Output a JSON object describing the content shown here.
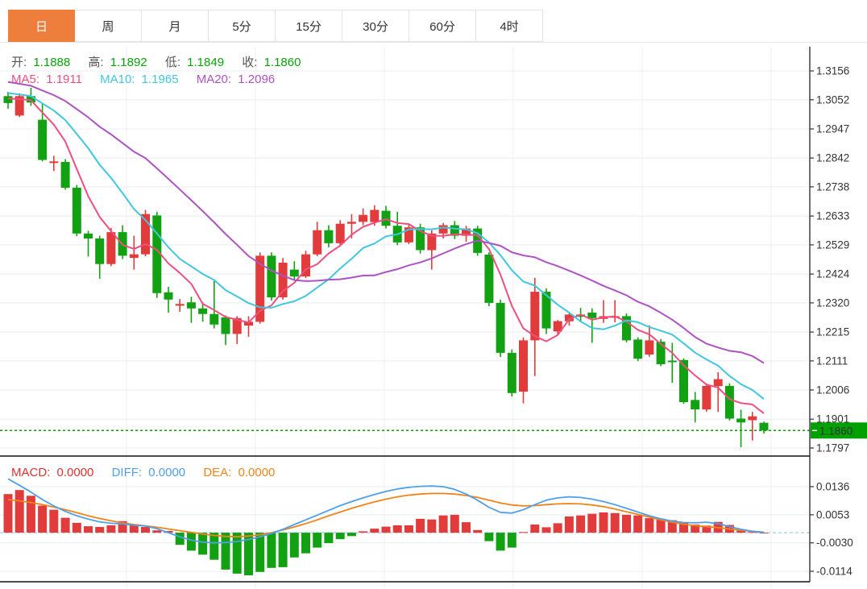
{
  "tabs": [
    {
      "label": "日",
      "active": true
    },
    {
      "label": "周",
      "active": false
    },
    {
      "label": "月",
      "active": false
    },
    {
      "label": "5分",
      "active": false
    },
    {
      "label": "15分",
      "active": false
    },
    {
      "label": "30分",
      "active": false
    },
    {
      "label": "60分",
      "active": false
    },
    {
      "label": "4时",
      "active": false
    }
  ],
  "legend_ohlc": {
    "open_label": "开:",
    "open": "1.1888",
    "high_label": "高:",
    "high": "1.1892",
    "low_label": "低:",
    "low": "1.1849",
    "close_label": "收:",
    "close": "1.1860"
  },
  "legend_ma": {
    "ma5_label": "MA5:",
    "ma5": "1.1911",
    "ma10_label": "MA10:",
    "ma10": "1.1965",
    "ma20_label": "MA20:",
    "ma20": "1.2096"
  },
  "legend_macd": {
    "macd_label": "MACD:",
    "macd": "0.0000",
    "diff_label": "DIFF:",
    "diff": "0.0000",
    "dea_label": "DEA:",
    "dea": "0.0000"
  },
  "colors": {
    "up": "#e23b3b",
    "down": "#12a112",
    "value_text": "#0aa30a",
    "ma5": "#ee4f80",
    "ma10": "#3fc7de",
    "ma20": "#ad53c2",
    "diff": "#4f9fea",
    "dea": "#f08418",
    "macd_text": "#e03030",
    "tab_active": "#ee7e3c",
    "price_tag": "#00a000",
    "grid": "#e7eef6",
    "vgrid": "#ececec",
    "zero_dash": "#aed6f1",
    "frame": "#111111"
  },
  "chart_data": {
    "type": "candlestick+macd",
    "note": "Daily FX candles; values estimated from axis gridlines",
    "main": {
      "y_ticks": [
        "1.3156",
        "1.3052",
        "1.2947",
        "1.2842",
        "1.2738",
        "1.2633",
        "1.2529",
        "1.2424",
        "1.2320",
        "1.2215",
        "1.2111",
        "1.2006",
        "1.1901",
        "1.1797"
      ],
      "current_price": "1.1860",
      "ma_periods": [
        5,
        10,
        20
      ],
      "candles": [
        [
          1.3065,
          1.308,
          1.302,
          1.304
        ],
        [
          1.2995,
          1.3075,
          1.299,
          1.3065
        ],
        [
          1.3065,
          1.3095,
          1.303,
          1.3042
        ],
        [
          1.298,
          1.304,
          1.283,
          1.2835
        ],
        [
          1.2825,
          1.285,
          1.2795,
          1.283
        ],
        [
          1.2828,
          1.2838,
          1.2728,
          1.2735
        ],
        [
          1.2735,
          1.2745,
          1.256,
          1.257
        ],
        [
          1.257,
          1.258,
          1.2487,
          1.2552
        ],
        [
          1.2552,
          1.2562,
          1.2407,
          1.246
        ],
        [
          1.246,
          1.259,
          1.2452,
          1.2575
        ],
        [
          1.2575,
          1.26,
          1.2478,
          1.249
        ],
        [
          1.2482,
          1.2562,
          1.244,
          1.2495
        ],
        [
          1.2495,
          1.2655,
          1.2488,
          1.264
        ],
        [
          1.2635,
          1.2648,
          1.2338,
          1.2355
        ],
        [
          1.2358,
          1.2378,
          1.2285,
          1.2332
        ],
        [
          1.231,
          1.2334,
          1.2288,
          1.2316
        ],
        [
          1.2322,
          1.2342,
          1.2248,
          1.23
        ],
        [
          1.23,
          1.2322,
          1.2252,
          1.228
        ],
        [
          1.228,
          1.2398,
          1.2228,
          1.2242
        ],
        [
          1.2268,
          1.2275,
          1.2168,
          1.2208
        ],
        [
          1.2208,
          1.2272,
          1.2172,
          1.2265
        ],
        [
          1.2238,
          1.2272,
          1.2198,
          1.2252
        ],
        [
          1.2252,
          1.2502,
          1.2245,
          1.249
        ],
        [
          1.249,
          1.2502,
          1.2328,
          1.234
        ],
        [
          1.234,
          1.2482,
          1.2332,
          1.2465
        ],
        [
          1.244,
          1.247,
          1.2402,
          1.2415
        ],
        [
          1.2415,
          1.2508,
          1.241,
          1.2495
        ],
        [
          1.2495,
          1.2612,
          1.2488,
          1.2582
        ],
        [
          1.2582,
          1.26,
          1.252,
          1.2535
        ],
        [
          1.2535,
          1.2618,
          1.2528,
          1.2605
        ],
        [
          1.2605,
          1.264,
          1.2552,
          1.2612
        ],
        [
          1.2612,
          1.2661,
          1.26,
          1.2637
        ],
        [
          1.2611,
          1.2672,
          1.2598,
          1.2655
        ],
        [
          1.2652,
          1.267,
          1.2588,
          1.2598
        ],
        [
          1.2598,
          1.2648,
          1.2528,
          1.2538
        ],
        [
          1.2538,
          1.2602,
          1.2532,
          1.2592
        ],
        [
          1.2592,
          1.2605,
          1.2498,
          1.251
        ],
        [
          1.251,
          1.2582,
          1.244,
          1.257
        ],
        [
          1.257,
          1.2608,
          1.2552,
          1.26
        ],
        [
          1.26,
          1.2615,
          1.255,
          1.2562
        ],
        [
          1.2562,
          1.2598,
          1.254,
          1.2588
        ],
        [
          1.2588,
          1.2598,
          1.249,
          1.25
        ],
        [
          1.2494,
          1.2502,
          1.2308,
          1.232
        ],
        [
          1.232,
          1.2332,
          1.2125,
          1.214
        ],
        [
          1.214,
          1.2152,
          1.1982,
          1.1995
        ],
        [
          1.2,
          1.2195,
          1.1958,
          1.2185
        ],
        [
          1.2185,
          1.241,
          1.2056,
          1.236
        ],
        [
          1.236,
          1.2372,
          1.2208,
          1.2228
        ],
        [
          1.2217,
          1.2258,
          1.2205,
          1.2254
        ],
        [
          1.2254,
          1.2282,
          1.2238,
          1.2278
        ],
        [
          1.2278,
          1.2302,
          1.225,
          1.227
        ],
        [
          1.2285,
          1.23,
          1.2176,
          1.2265
        ],
        [
          1.2262,
          1.233,
          1.2248,
          1.2272
        ],
        [
          1.2268,
          1.233,
          1.225,
          1.2272
        ],
        [
          1.2272,
          1.2282,
          1.2178,
          1.2185
        ],
        [
          1.2188,
          1.2196,
          1.211,
          1.2119
        ],
        [
          1.2134,
          1.2239,
          1.2126,
          1.2185
        ],
        [
          1.218,
          1.219,
          1.2092,
          1.2099
        ],
        [
          1.2112,
          1.2176,
          1.2032,
          1.211
        ],
        [
          1.2114,
          1.212,
          1.1956,
          1.1962
        ],
        [
          1.197,
          1.1999,
          1.1889,
          1.1936
        ],
        [
          1.1936,
          1.203,
          1.1928,
          1.2021
        ],
        [
          1.202,
          1.207,
          1.1927,
          1.2045
        ],
        [
          1.2021,
          1.203,
          1.1896,
          1.1903
        ],
        [
          1.1903,
          1.1935,
          1.18,
          1.1889
        ],
        [
          1.1897,
          1.1927,
          1.1824,
          1.1911
        ],
        [
          1.1888,
          1.1892,
          1.1849,
          1.186
        ]
      ]
    },
    "macd": {
      "y_ticks": [
        "0.0136",
        "0.0053",
        "-0.0030",
        "-0.0114"
      ],
      "hist": [
        0.0114,
        0.0126,
        0.0109,
        0.008,
        0.0068,
        0.0044,
        0.0029,
        0.0019,
        0.0017,
        0.0022,
        0.0034,
        0.0024,
        0.0017,
        0.0007,
        0.0005,
        -0.0036,
        -0.0053,
        -0.0065,
        -0.008,
        -0.0109,
        -0.0121,
        -0.0126,
        -0.0116,
        -0.0104,
        -0.0102,
        -0.0073,
        -0.0061,
        -0.0044,
        -0.0031,
        -0.0019,
        -0.001,
        0.0004,
        0.0012,
        0.0018,
        0.0022,
        0.0022,
        0.0041,
        0.0039,
        0.0051,
        0.0053,
        0.0031,
        0.0008,
        -0.0025,
        -0.0053,
        -0.0044,
        0.0002,
        0.0024,
        0.0016,
        0.0028,
        0.0048,
        0.0051,
        0.0056,
        0.006,
        0.0058,
        0.0053,
        0.0051,
        0.0043,
        0.0041,
        0.0037,
        0.003,
        0.0024,
        0.0021,
        0.0032,
        0.0023,
        0.0006,
        0.0002,
        0.0
      ],
      "diff": [
        0.0159,
        0.014,
        0.012,
        0.0098,
        0.0079,
        0.0063,
        0.005,
        0.004,
        0.0032,
        0.0028,
        0.0026,
        0.0022,
        0.002,
        0.0012,
        0.0,
        -0.0012,
        -0.0022,
        -0.0028,
        -0.003,
        -0.0029,
        -0.0026,
        -0.002,
        -0.0012,
        -0.0002,
        0.001,
        0.0024,
        0.0038,
        0.0052,
        0.0066,
        0.008,
        0.0092,
        0.0103,
        0.0113,
        0.0122,
        0.0129,
        0.0134,
        0.0137,
        0.0138,
        0.0136,
        0.0128,
        0.0114,
        0.0096,
        0.0075,
        0.006,
        0.0058,
        0.0068,
        0.0083,
        0.0096,
        0.0103,
        0.0106,
        0.0104,
        0.0099,
        0.0092,
        0.0083,
        0.0072,
        0.0061,
        0.005,
        0.0041,
        0.0034,
        0.003,
        0.0029,
        0.0031,
        0.0027,
        0.0018,
        0.001,
        0.0004,
        0.0001
      ],
      "dea": [
        0.0098,
        0.0094,
        0.0089,
        0.0083,
        0.0076,
        0.0068,
        0.0059,
        0.005,
        0.0042,
        0.0035,
        0.0029,
        0.0024,
        0.002,
        0.0016,
        0.0011,
        0.0006,
        0.0001,
        -0.0004,
        -0.0008,
        -0.0011,
        -0.0012,
        -0.001,
        -0.0006,
        0.0,
        0.0008,
        0.0017,
        0.0027,
        0.0038,
        0.005,
        0.0061,
        0.0072,
        0.0082,
        0.0091,
        0.0099,
        0.0106,
        0.0111,
        0.0114,
        0.0116,
        0.0116,
        0.0114,
        0.011,
        0.0104,
        0.0096,
        0.0088,
        0.0082,
        0.0079,
        0.008,
        0.0083,
        0.0085,
        0.0086,
        0.0085,
        0.0082,
        0.0077,
        0.007,
        0.0062,
        0.0054,
        0.0046,
        0.0038,
        0.0031,
        0.0025,
        0.0021,
        0.0018,
        0.0015,
        0.0011,
        0.0007,
        0.0004,
        0.0001
      ]
    }
  }
}
